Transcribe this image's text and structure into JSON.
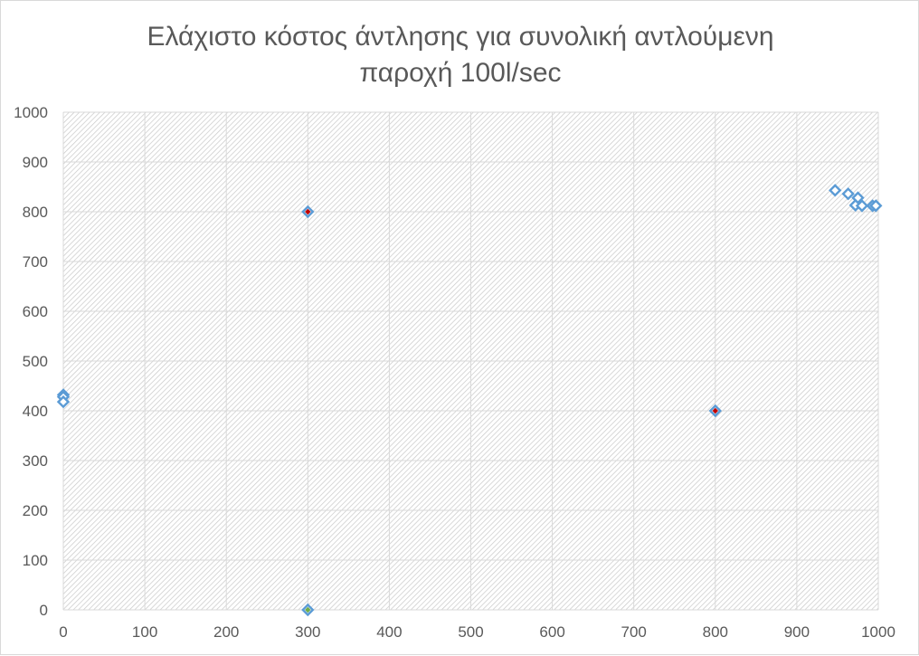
{
  "chart_data": {
    "type": "scatter",
    "title": [
      "Ελάχιστο κόστος άντλησης για συνολική αντλούμενη",
      "παροχή 100l/sec"
    ],
    "xlabel": "",
    "ylabel": "",
    "xlim": [
      0,
      1000
    ],
    "ylim": [
      0,
      1000
    ],
    "x_ticks": [
      0,
      100,
      200,
      300,
      400,
      500,
      600,
      700,
      800,
      900,
      1000
    ],
    "y_ticks": [
      0,
      100,
      200,
      300,
      400,
      500,
      600,
      700,
      800,
      900,
      1000
    ],
    "grid": true,
    "legend": "none",
    "series": [
      {
        "color": "#5b9bd5",
        "marker": "diamond-open",
        "points": [
          [
            0,
            432
          ],
          [
            0,
            428
          ],
          [
            0,
            418
          ],
          [
            947,
            843
          ],
          [
            963,
            836
          ],
          [
            975,
            828
          ],
          [
            972,
            813
          ],
          [
            980,
            812
          ],
          [
            993,
            812
          ],
          [
            997,
            812
          ]
        ]
      },
      {
        "color": "#c00000",
        "marker": "diamond-filled-center",
        "points": [
          [
            300,
            800
          ],
          [
            800,
            400
          ]
        ]
      },
      {
        "color": "#70ad47",
        "marker": "diamond-filled-center",
        "points": [
          [
            300,
            0
          ]
        ]
      }
    ],
    "colors": {
      "plot_background": "#ffffff",
      "hatch": "#bfbfbf",
      "gridline": "#d9d9d9",
      "text": "#595959"
    }
  }
}
